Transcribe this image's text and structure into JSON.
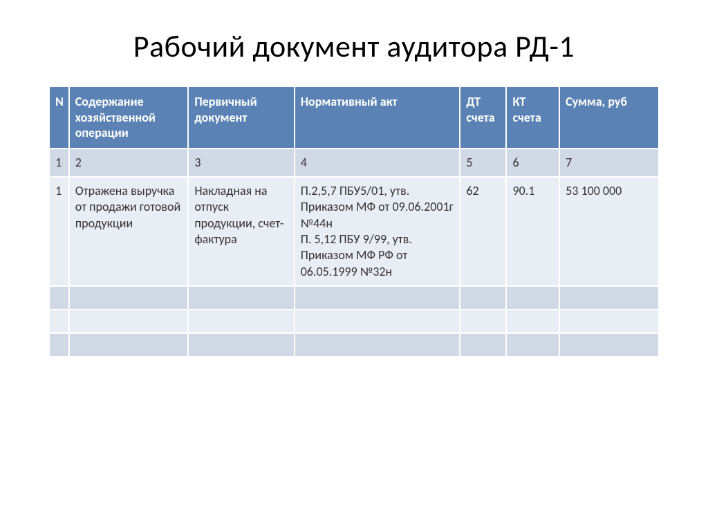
{
  "title": "Рабочий документ аудитора РД-1",
  "table": {
    "type": "table",
    "header_bg": "#5b82b4",
    "header_fg": "#ffffff",
    "row_bg": "#d1d9e6",
    "row_alt_bg": "#e9edf4",
    "border_color": "#ffffff",
    "font_size": 18,
    "columns": [
      {
        "key": "n",
        "label": "N",
        "width_pct": 3
      },
      {
        "key": "op",
        "label": "Содержание хозяйственной операции",
        "width_pct": 18
      },
      {
        "key": "doc",
        "label": "Первичный документ",
        "width_pct": 16
      },
      {
        "key": "act",
        "label": "Нормативный акт",
        "width_pct": 25
      },
      {
        "key": "dt",
        "label": "ДТ счета",
        "width_pct": 7
      },
      {
        "key": "kt",
        "label": "КТ счета",
        "width_pct": 8
      },
      {
        "key": "sum",
        "label": "Сумма, руб",
        "width_pct": 15
      }
    ],
    "index_row": {
      "n": "1",
      "op": "2",
      "doc": "3",
      "act": "4",
      "dt": "5",
      "kt": "6",
      "sum": "7"
    },
    "rows": [
      {
        "n": "1",
        "op": "Отражена выручка от продажи готовой продукции",
        "doc": "Накладная на отпуск продукции, счет-фактура",
        "act": "П.2,5,7 ПБУ5/01, утв. Приказом МФ от 09.06.2001г №44н\nП. 5,12 ПБУ 9/99, утв. Приказом МФ РФ от 06.05.1999 №32н",
        "dt": "62",
        "kt": "90.1",
        "sum": "53 100 000"
      }
    ],
    "empty_rows": 3
  }
}
